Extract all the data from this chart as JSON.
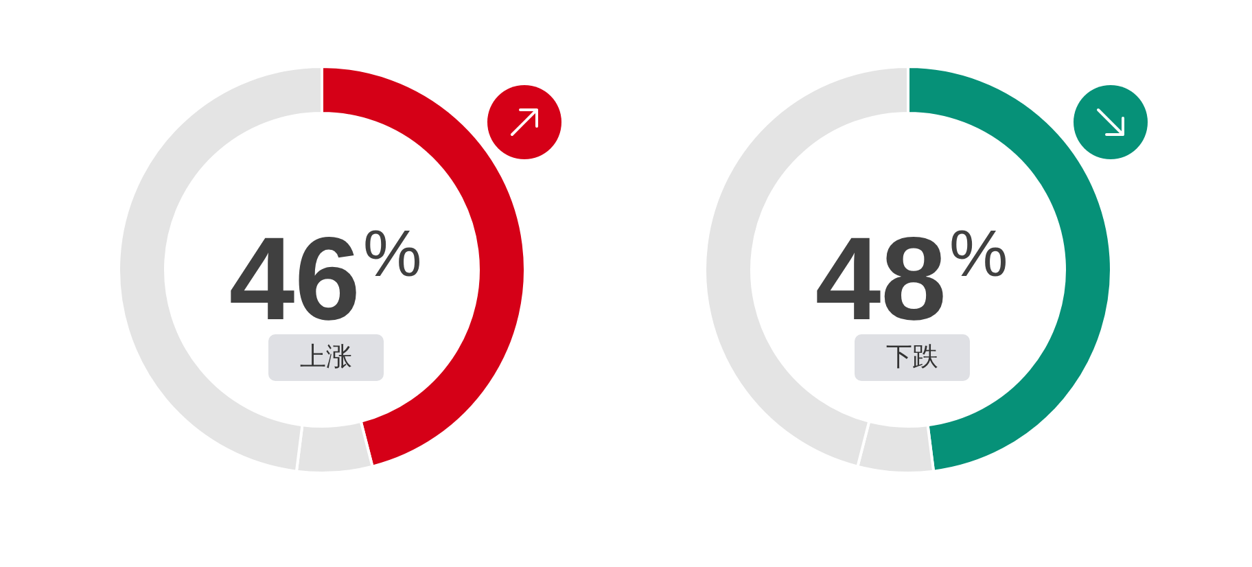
{
  "chart_data": [
    {
      "type": "donut",
      "categories": [
        "上涨",
        null,
        null
      ],
      "values": [
        46,
        6,
        48
      ],
      "colors": [
        "#d50017",
        "#e4e4e4",
        "#e4e4e4"
      ],
      "value_labels": [
        "46%",
        null,
        null
      ]
    },
    {
      "type": "donut",
      "categories": [
        "下跌",
        null,
        null
      ],
      "values": [
        48,
        6,
        46
      ],
      "colors": [
        "#069178",
        "#e4e4e4",
        "#e4e4e4"
      ],
      "value_labels": [
        "48%",
        null,
        null
      ]
    }
  ]
}
